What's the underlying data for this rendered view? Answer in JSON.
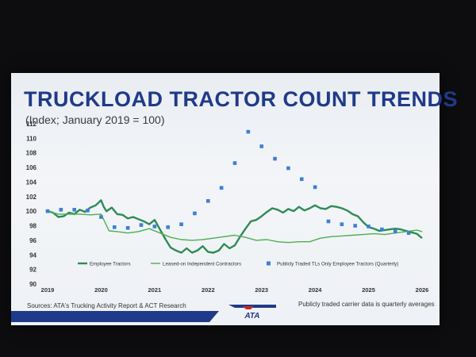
{
  "slide": {
    "title": "TRUCKLOAD TRACTOR COUNT TRENDS",
    "subtitle": "(Index; January 2019 = 100)",
    "sources": "Sources: ATA's Trucking Activity Report & ACT Research",
    "footnote": "Publicly traded carrier data is quarterly averages",
    "logo_text": "ATA"
  },
  "colors": {
    "title": "#1f3a8a",
    "employee": "#2e8b57",
    "leased": "#4caf50",
    "public": "#3d7fd6",
    "bar": "#1f3a8a"
  },
  "chart_data": {
    "type": "line",
    "title": "TRUCKLOAD TRACTOR COUNT TRENDS",
    "subtitle": "(Index; January 2019 = 100)",
    "xlim": [
      2019,
      2026
    ],
    "ylim": [
      90,
      112
    ],
    "x_ticks": [
      "2019",
      "2020",
      "2021",
      "2022",
      "2023",
      "2024",
      "2025",
      "2026"
    ],
    "y_ticks": [
      "90",
      "92",
      "94",
      "96",
      "98",
      "100",
      "102",
      "104",
      "106",
      "108",
      "110",
      "112"
    ],
    "legend_position": "bottom",
    "series": [
      {
        "name": "Employee Tractors",
        "style": "line",
        "x": [
          2019.0,
          2019.1,
          2019.2,
          2019.3,
          2019.4,
          2019.5,
          2019.6,
          2019.7,
          2019.8,
          2019.9,
          2020.0,
          2020.05,
          2020.1,
          2020.2,
          2020.3,
          2020.4,
          2020.5,
          2020.6,
          2020.7,
          2020.8,
          2020.9,
          2021.0,
          2021.1,
          2021.2,
          2021.3,
          2021.4,
          2021.5,
          2021.6,
          2021.7,
          2021.8,
          2021.9,
          2022.0,
          2022.1,
          2022.2,
          2022.3,
          2022.4,
          2022.5,
          2022.6,
          2022.7,
          2022.8,
          2022.9,
          2023.0,
          2023.1,
          2023.2,
          2023.3,
          2023.4,
          2023.5,
          2023.6,
          2023.7,
          2023.8,
          2023.9,
          2024.0,
          2024.1,
          2024.2,
          2024.3,
          2024.4,
          2024.5,
          2024.6,
          2024.7,
          2024.8,
          2024.9,
          2025.0,
          2025.1,
          2025.2,
          2025.3,
          2025.4,
          2025.5,
          2025.6,
          2025.7,
          2025.8,
          2025.9,
          2026.0
        ],
        "y": [
          100.0,
          99.8,
          99.2,
          99.3,
          99.8,
          99.6,
          100.2,
          99.9,
          100.5,
          100.8,
          101.5,
          100.6,
          100.0,
          100.5,
          99.6,
          99.5,
          99.0,
          99.2,
          98.9,
          98.6,
          98.2,
          98.8,
          97.5,
          96.2,
          95.0,
          94.6,
          94.3,
          94.9,
          94.3,
          94.6,
          95.2,
          94.4,
          94.3,
          94.6,
          95.5,
          94.9,
          95.3,
          96.5,
          97.6,
          98.6,
          98.8,
          99.3,
          99.9,
          100.4,
          100.2,
          99.8,
          100.3,
          100.0,
          100.6,
          100.1,
          100.4,
          100.8,
          100.4,
          100.3,
          100.7,
          100.6,
          100.4,
          100.1,
          99.6,
          99.3,
          98.5,
          97.8,
          97.6,
          97.3,
          97.4,
          97.5,
          97.6,
          97.5,
          97.3,
          97.1,
          96.9,
          96.3
        ]
      },
      {
        "name": "Leased-on Independent Contractors",
        "style": "line",
        "x": [
          2019.0,
          2019.2,
          2019.4,
          2019.6,
          2019.8,
          2020.0,
          2020.15,
          2020.3,
          2020.5,
          2020.7,
          2020.9,
          2021.1,
          2021.3,
          2021.5,
          2021.7,
          2021.9,
          2022.1,
          2022.3,
          2022.5,
          2022.7,
          2022.9,
          2023.1,
          2023.3,
          2023.5,
          2023.7,
          2023.9,
          2024.1,
          2024.3,
          2024.5,
          2024.7,
          2024.9,
          2025.1,
          2025.3,
          2025.5,
          2025.7,
          2025.9,
          2026.0
        ],
        "y": [
          100.0,
          99.6,
          99.6,
          99.6,
          99.5,
          99.6,
          97.3,
          97.2,
          97.0,
          97.2,
          97.6,
          97.0,
          96.4,
          96.1,
          96.0,
          96.1,
          96.3,
          96.5,
          96.7,
          96.4,
          96.0,
          96.1,
          95.8,
          95.7,
          95.8,
          95.8,
          96.3,
          96.5,
          96.6,
          96.7,
          96.8,
          96.9,
          96.8,
          97.0,
          97.2,
          97.4,
          97.2
        ]
      },
      {
        "name": "Publicly Traded TLs Only Employee Tractors (Quarterly)",
        "style": "scatter",
        "x": [
          2019.0,
          2019.25,
          2019.5,
          2019.75,
          2020.0,
          2020.25,
          2020.5,
          2020.75,
          2021.0,
          2021.25,
          2021.5,
          2021.75,
          2022.0,
          2022.25,
          2022.5,
          2022.75,
          2023.0,
          2023.25,
          2023.5,
          2023.75,
          2024.0,
          2024.25,
          2024.5,
          2024.75,
          2025.0,
          2025.25,
          2025.5,
          2025.75
        ],
        "y": [
          100.0,
          100.2,
          100.2,
          100.1,
          99.2,
          97.8,
          97.7,
          98.1,
          97.9,
          97.8,
          98.2,
          99.7,
          101.4,
          103.2,
          106.6,
          110.9,
          108.9,
          107.2,
          105.9,
          104.4,
          103.3,
          98.6,
          98.2,
          98.0,
          97.9,
          97.5,
          97.2,
          97.0
        ]
      }
    ]
  }
}
